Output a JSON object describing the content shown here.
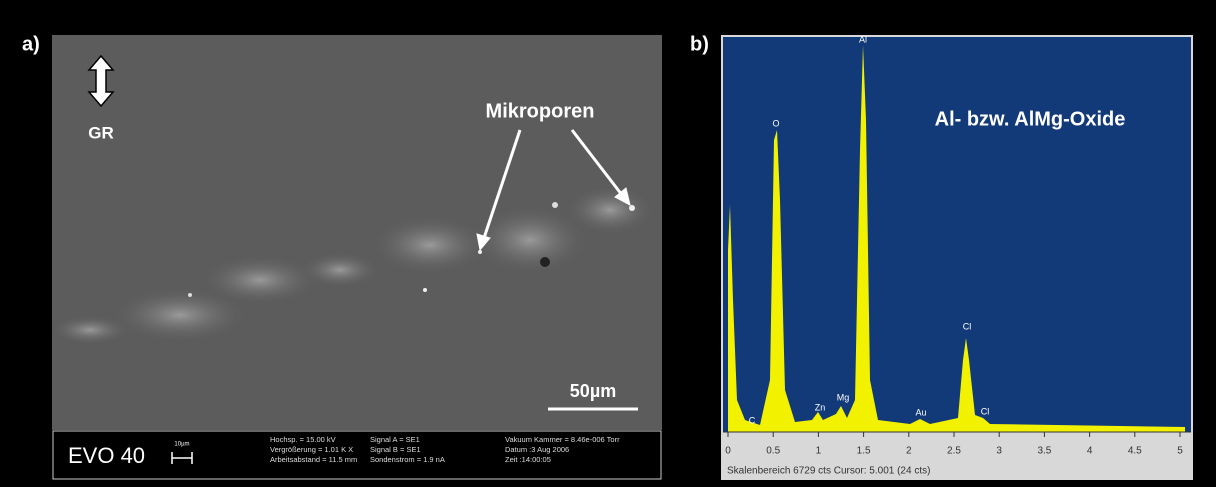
{
  "panel_a": {
    "label": "a)",
    "orientation": "GR",
    "annotation": "Mikroporen",
    "scale_bar": "50µm",
    "info_bar": {
      "model": "EVO 40",
      "scale_unit": "10µm",
      "lines": [
        "Hochsp. = 15.00 kV",
        "Vergrößerung =  1.01 K X",
        "Arbeitsabstand = 11.5 mm",
        "Signal A = SE1",
        "Signal B = SE1",
        "Sondenstrom =   1.9 nA",
        "Vakuum Kammer = 8.46e-006 Torr",
        "Datum :3 Aug 2006",
        "Zeit :14:00:05"
      ]
    }
  },
  "panel_b": {
    "label": "b)",
    "title": "Al- bzw. AlMg-Oxide",
    "peaks": [
      "C",
      "O",
      "Zn",
      "Mg",
      "Al",
      "Au",
      "Cl",
      "Cl"
    ],
    "x_ticks": [
      "0",
      "0.5",
      "1",
      "1.5",
      "2",
      "2.5",
      "3",
      "3.5",
      "4",
      "4.5",
      "5"
    ],
    "footer": "Skalenbereich 6729 cts Cursor: 5.001  (24 cts)"
  }
}
